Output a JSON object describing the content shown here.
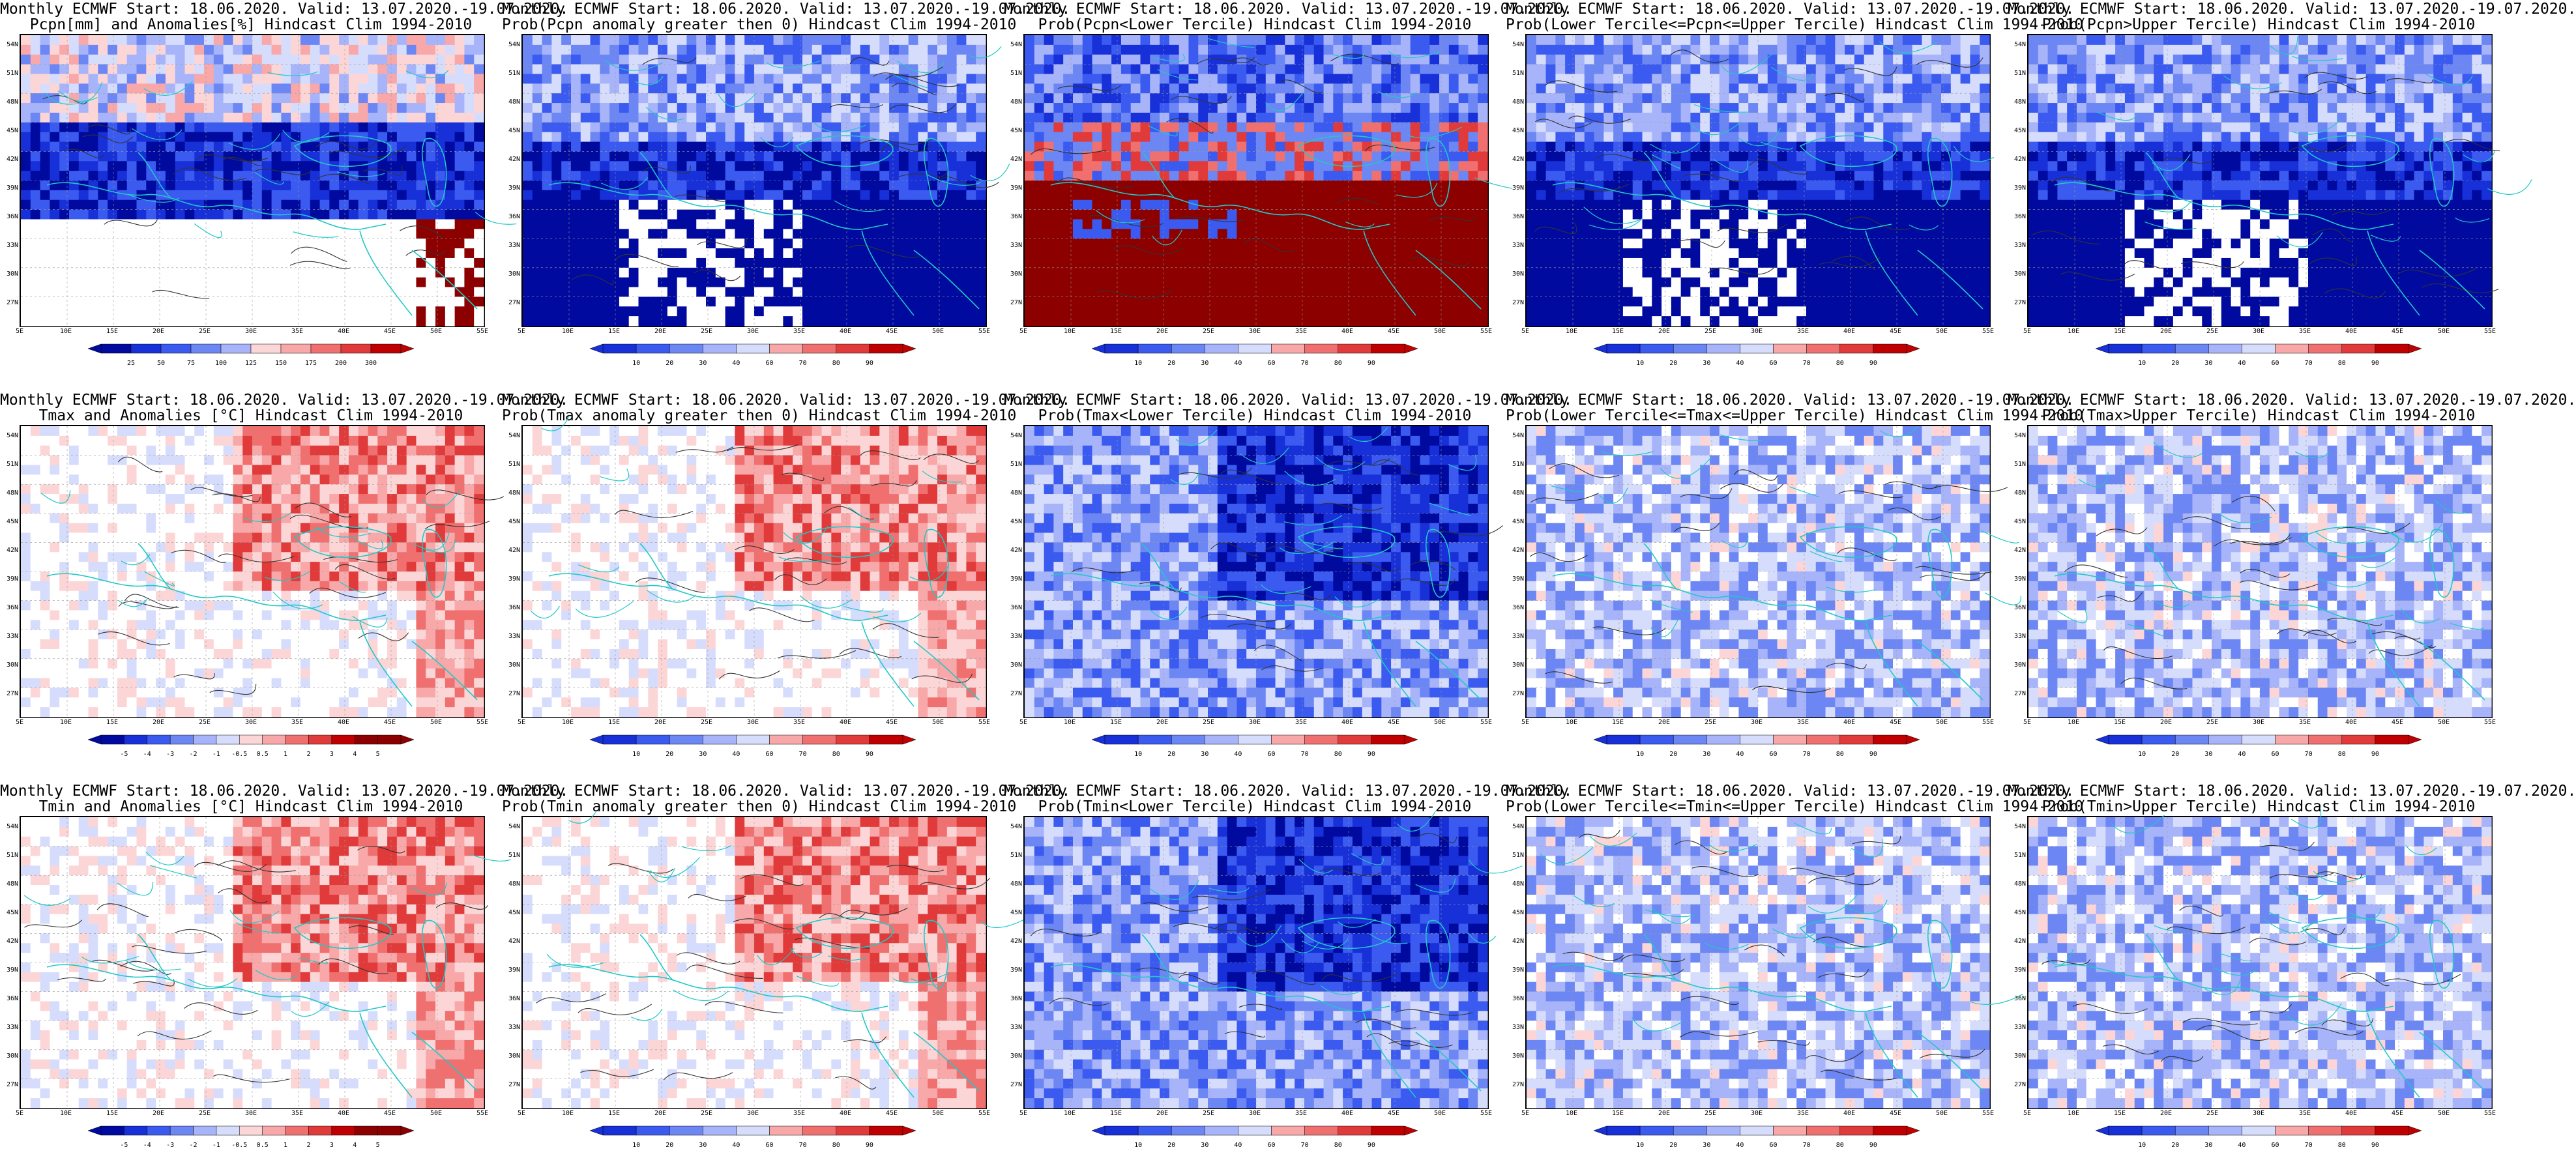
{
  "panels": [
    {
      "row": 0,
      "col": 0,
      "line1": "Monthly ECMWF Start: 18.06.2020. Valid: 13.07.2020.-19.07.2020.",
      "line2": "Pcpn[mm] and Anomalies[%] Hindcast Clim 1994-2010",
      "scheme": "pcpn_anom",
      "levels": [
        "25",
        "50",
        "75",
        "100",
        "125",
        "150",
        "175",
        "200",
        "300"
      ]
    },
    {
      "row": 0,
      "col": 1,
      "line1": "Monthly ECMWF Start: 18.06.2020. Valid: 13.07.2020.-19.07.2020.",
      "line2": "Prob(Pcpn anomaly greater then 0) Hindcast Clim 1994-2010",
      "scheme": "prob_blue",
      "levels": [
        "10",
        "20",
        "30",
        "40",
        "60",
        "70",
        "80",
        "90"
      ]
    },
    {
      "row": 0,
      "col": 2,
      "line1": "Monthly ECMWF Start: 18.06.2020. Valid: 13.07.2020.-19.07.2020.",
      "line2": "Prob(Pcpn<Lower Tercile) Hindcast Clim 1994-2010",
      "scheme": "prob_red_south",
      "levels": [
        "10",
        "20",
        "30",
        "40",
        "60",
        "70",
        "80",
        "90"
      ]
    },
    {
      "row": 0,
      "col": 3,
      "line1": "Monthly ECMWF Start: 18.06.2020. Valid: 13.07.2020.-19.07.2020.",
      "line2": "Prob(Lower Tercile<=Pcpn<=Upper Tercile) Hindcast Clim 1994-2010",
      "scheme": "prob_blue",
      "levels": [
        "10",
        "20",
        "30",
        "40",
        "60",
        "70",
        "80",
        "90"
      ]
    },
    {
      "row": 0,
      "col": 4,
      "line1": "Monthly ECMWF Start: 18.06.2020. Valid: 13.07.2020.-19.07.2020.",
      "line2": "Prob(Pcpn>Upper Tercile) Hindcast Clim 1994-2010",
      "scheme": "prob_blue",
      "levels": [
        "10",
        "20",
        "30",
        "40",
        "60",
        "70",
        "80",
        "90"
      ]
    },
    {
      "row": 1,
      "col": 0,
      "line1": "Monthly ECMWF Start: 18.06.2020. Valid: 13.07.2020.-19.07.2020.",
      "line2": "Tmax and Anomalies [°C] Hindcast Clim 1994-2010",
      "scheme": "temp_red",
      "levels": [
        "-5",
        "-4",
        "-3",
        "-2",
        "-1",
        "-0.5",
        "0.5",
        "1",
        "2",
        "3",
        "4",
        "5"
      ]
    },
    {
      "row": 1,
      "col": 1,
      "line1": "Monthly ECMWF Start: 18.06.2020. Valid: 13.07.2020.-19.07.2020.",
      "line2": "Prob(Tmax anomaly greater then 0) Hindcast Clim 1994-2010",
      "scheme": "temp_red",
      "levels": [
        "10",
        "20",
        "30",
        "40",
        "60",
        "70",
        "80",
        "90"
      ]
    },
    {
      "row": 1,
      "col": 2,
      "line1": "Monthly ECMWF Start: 18.06.2020. Valid: 13.07.2020.-19.07.2020.",
      "line2": "Prob(Tmax<Lower Tercile) Hindcast Clim 1994-2010",
      "scheme": "prob_blue_mid",
      "levels": [
        "10",
        "20",
        "30",
        "40",
        "60",
        "70",
        "80",
        "90"
      ]
    },
    {
      "row": 1,
      "col": 3,
      "line1": "Monthly ECMWF Start: 18.06.2020. Valid: 13.07.2020.-19.07.2020.",
      "line2": "Prob(Lower Tercile<=Tmax<=Upper Tercile) Hindcast Clim 1994-2010",
      "scheme": "prob_light",
      "levels": [
        "10",
        "20",
        "30",
        "40",
        "60",
        "70",
        "80",
        "90"
      ]
    },
    {
      "row": 1,
      "col": 4,
      "line1": "Monthly ECMWF Start: 18.06.2020. Valid: 13.07.2020.-19.07.2020.",
      "line2": "Prob(Tmax>Upper Tercile) Hindcast Clim 1994-2010",
      "scheme": "prob_light",
      "levels": [
        "10",
        "20",
        "30",
        "40",
        "60",
        "70",
        "80",
        "90"
      ]
    },
    {
      "row": 2,
      "col": 0,
      "line1": "Monthly ECMWF Start: 18.06.2020. Valid: 13.07.2020.-19.07.2020.",
      "line2": "Tmin and Anomalies [°C] Hindcast Clim 1994-2010",
      "scheme": "temp_red",
      "levels": [
        "-5",
        "-4",
        "-3",
        "-2",
        "-1",
        "-0.5",
        "0.5",
        "1",
        "2",
        "3",
        "4",
        "5"
      ]
    },
    {
      "row": 2,
      "col": 1,
      "line1": "Monthly ECMWF Start: 18.06.2020. Valid: 13.07.2020.-19.07.2020.",
      "line2": "Prob(Tmin anomaly greater then 0) Hindcast Clim 1994-2010",
      "scheme": "temp_red",
      "levels": [
        "10",
        "20",
        "30",
        "40",
        "60",
        "70",
        "80",
        "90"
      ]
    },
    {
      "row": 2,
      "col": 2,
      "line1": "Monthly ECMWF Start: 18.06.2020. Valid: 13.07.2020.-19.07.2020.",
      "line2": "Prob(Tmin<Lower Tercile) Hindcast Clim 1994-2010",
      "scheme": "prob_blue_mid",
      "levels": [
        "10",
        "20",
        "30",
        "40",
        "60",
        "70",
        "80",
        "90"
      ]
    },
    {
      "row": 2,
      "col": 3,
      "line1": "Monthly ECMWF Start: 18.06.2020. Valid: 13.07.2020.-19.07.2020.",
      "line2": "Prob(Lower Tercile<=Tmin<=Upper Tercile) Hindcast Clim 1994-2010",
      "scheme": "prob_light",
      "levels": [
        "10",
        "20",
        "30",
        "40",
        "60",
        "70",
        "80",
        "90"
      ]
    },
    {
      "row": 2,
      "col": 4,
      "line1": "Monthly ECMWF Start: 18.06.2020. Valid: 13.07.2020.-19.07.2020.",
      "line2": "Prob(Tmin>Upper Tercile) Hindcast Clim 1994-2010",
      "scheme": "prob_light",
      "levels": [
        "10",
        "20",
        "30",
        "40",
        "60",
        "70",
        "80",
        "90"
      ]
    }
  ],
  "lat_ticks": [
    "54N",
    "51N",
    "48N",
    "45N",
    "42N",
    "39N",
    "36N",
    "33N",
    "30N",
    "27N"
  ],
  "lon_ticks": [
    "5E",
    "10E",
    "15E",
    "20E",
    "25E",
    "30E",
    "35E",
    "40E",
    "45E",
    "50E",
    "55E"
  ],
  "colors": {
    "coast": "#20c8c8",
    "contour": "#333333",
    "blue_ramp": [
      "#000a9e",
      "#1830d8",
      "#3a5af0",
      "#6c86f4",
      "#a7b4fa",
      "#d6dcfc",
      "#ffffff"
    ],
    "red_ramp": [
      "#ffffff",
      "#fcd6d6",
      "#f8a8a8",
      "#f07070",
      "#e03a3a",
      "#c00000",
      "#8c0000"
    ]
  }
}
